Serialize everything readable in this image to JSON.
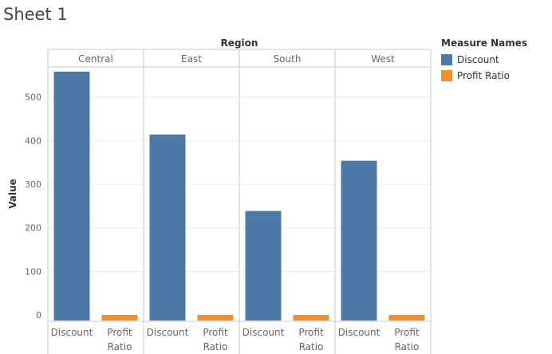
{
  "sheet": {
    "title": "Sheet 1"
  },
  "colors": {
    "discount": "#4e79a7",
    "profit_ratio": "#f28e2b",
    "grid": "#ececec",
    "border": "#c8c8c8",
    "axis_text": "#666666"
  },
  "legend": {
    "title": "Measure Names",
    "items": [
      {
        "label": "Discount",
        "color": "#4e79a7"
      },
      {
        "label": "Profit Ratio",
        "color": "#f28e2b"
      }
    ]
  },
  "chart_data": {
    "type": "bar",
    "title": "",
    "column_header": "Region",
    "ylabel": "Value",
    "ylim": [
      0,
      560
    ],
    "yticks": [
      0,
      100,
      200,
      300,
      400,
      500
    ],
    "grid": true,
    "legend_position": "right",
    "panels": [
      "Central",
      "East",
      "South",
      "West"
    ],
    "measures": [
      "Discount",
      "Profit Ratio"
    ],
    "measure_tick_labels": [
      [
        "Discount"
      ],
      [
        "Profit",
        "Ratio"
      ]
    ],
    "series": [
      {
        "name": "Discount",
        "values": [
          558.3,
          414.0,
          238.6,
          353.8
        ]
      },
      {
        "name": "Profit Ratio",
        "values": [
          0.08,
          0.15,
          0.12,
          0.15
        ]
      }
    ]
  }
}
